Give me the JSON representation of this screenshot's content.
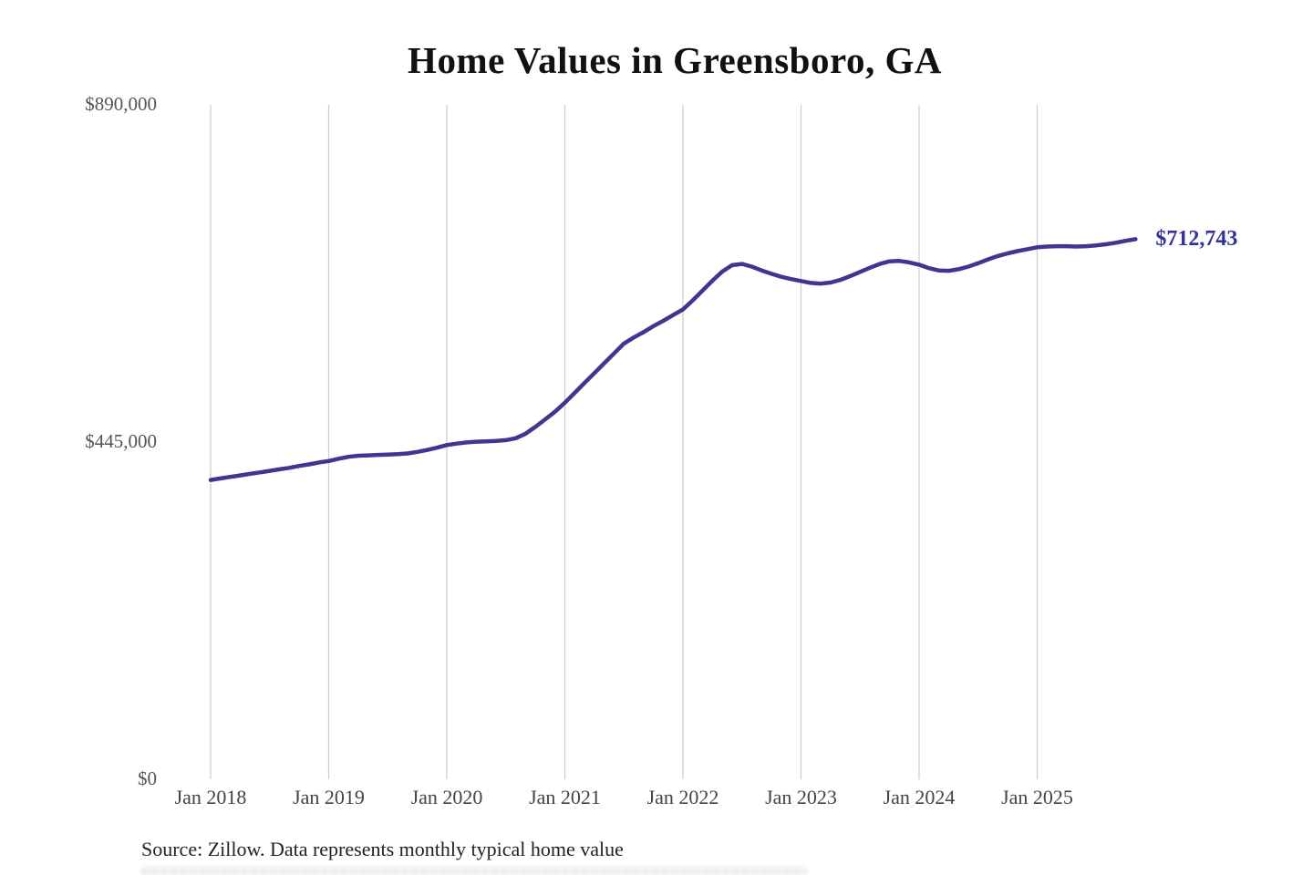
{
  "title": "Home Values in Greensboro, GA",
  "source_note": "Source: Zillow. Data represents monthly typical home value",
  "colors": {
    "background": "#ffffff",
    "line": "#3e368f",
    "end_label": "#333399",
    "grid": "#cccccc",
    "title": "#111111",
    "y_tick_label": "#555555",
    "x_tick_label": "#444444",
    "source": "#222222"
  },
  "chart_data": {
    "type": "line",
    "title": "Home Values in Greensboro, GA",
    "unit": "USD",
    "frequency": "monthly",
    "start": "Jan 2018",
    "end": "Nov 2025",
    "ylim": [
      0,
      890000
    ],
    "grid": "vertical-only",
    "legend": "none",
    "yticks": [
      {
        "value": 890000,
        "label": "$890,000"
      },
      {
        "value": 445000,
        "label": "$445,000"
      },
      {
        "value": 0,
        "label": "$0"
      }
    ],
    "xticks": [
      {
        "label": "Jan 2018",
        "month_index": 0
      },
      {
        "label": "Jan 2019",
        "month_index": 12
      },
      {
        "label": "Jan 2020",
        "month_index": 24
      },
      {
        "label": "Jan 2021",
        "month_index": 36
      },
      {
        "label": "Jan 2022",
        "month_index": 48
      },
      {
        "label": "Jan 2023",
        "month_index": 60
      },
      {
        "label": "Jan 2024",
        "month_index": 72
      },
      {
        "label": "Jan 2025",
        "month_index": 84
      }
    ],
    "end_annotation": "$712,743",
    "series": [
      {
        "name": "Monthly typical home value",
        "values": [
          395000,
          397000,
          399000,
          401000,
          403000,
          405000,
          407000,
          409000,
          411000,
          413500,
          415500,
          418000,
          420000,
          423000,
          425500,
          427000,
          427500,
          428000,
          428500,
          429000,
          430000,
          432000,
          434500,
          437500,
          441000,
          443000,
          444500,
          445500,
          446000,
          446500,
          447500,
          450000,
          456000,
          465000,
          475000,
          485000,
          497000,
          510000,
          523000,
          536000,
          549000,
          562000,
          575000,
          583000,
          590000,
          598000,
          605000,
          612500,
          620000,
          632000,
          645000,
          658000,
          670000,
          678500,
          680000,
          676500,
          671500,
          667000,
          663000,
          660000,
          657500,
          655000,
          654000,
          655500,
          659000,
          664000,
          669500,
          675000,
          680000,
          683500,
          684000,
          682000,
          679000,
          674500,
          671500,
          671000,
          673000,
          676500,
          681000,
          686000,
          690500,
          694000,
          697000,
          699500,
          702000,
          703000,
          703500,
          703500,
          703000,
          703500,
          704500,
          706000,
          708000,
          710500,
          712743
        ]
      }
    ]
  }
}
